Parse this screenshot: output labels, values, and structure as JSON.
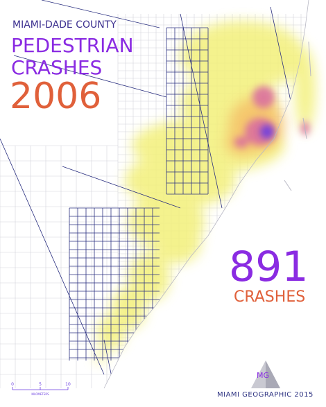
{
  "header": {
    "county": "MIAMI-DADE COUNTY",
    "subject": "PEDESTRIAN",
    "event": "CRASHES",
    "year": "2006"
  },
  "total": {
    "count": "891",
    "label": "CRASHES"
  },
  "credit": {
    "logo": "MG",
    "text": "MIAMI GEOGRAPHIC 2015"
  },
  "scale_bar": {
    "ticks": [
      "0",
      "5",
      "10"
    ],
    "unit": "KILOMETERS"
  }
}
